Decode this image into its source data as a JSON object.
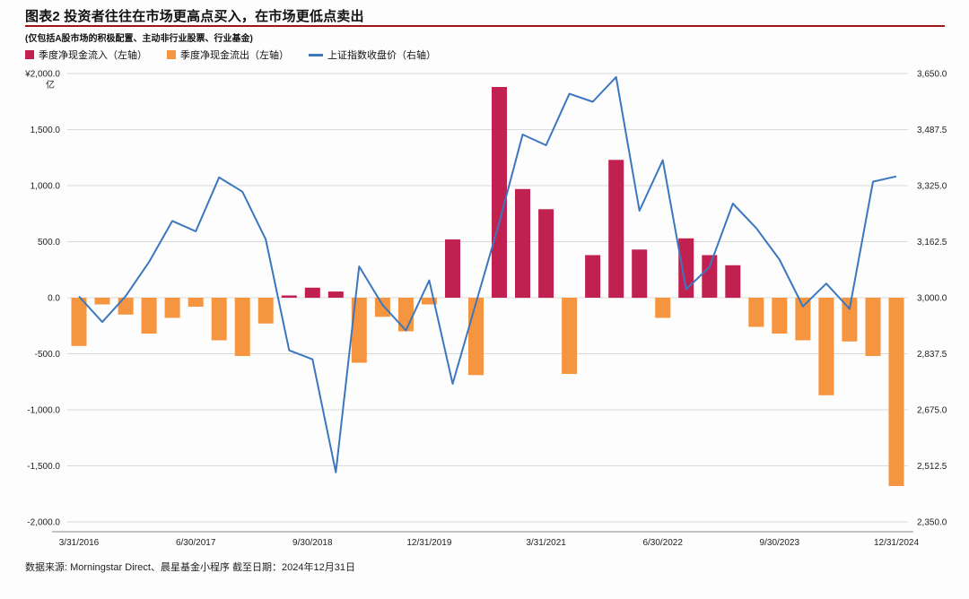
{
  "header": {
    "title": "图表2 投资者往往在市场更高点买入，在市场更低点卖出",
    "subtitle": "(仅包括A股市场的积极配置、主动非行业股票、行业基金)",
    "rule_color": "#9e1515"
  },
  "legend": [
    {
      "label": "季度净现金流入（左轴）",
      "color": "#c02150",
      "swatch": "square"
    },
    {
      "label": "季度净现金流出（左轴）",
      "color": "#f5953f",
      "swatch": "square"
    },
    {
      "label": "上证指数收盘价（右轴）",
      "color": "#3b77bf",
      "swatch": "line"
    }
  ],
  "footer": {
    "text": "数据来源: Morningstar Direct、晨星基金小程序 截至日期：2024年12月31日"
  },
  "chart_data": {
    "type": "bar+line",
    "title": "图表2 投资者往往在市场更高点买入，在市场更低点卖出",
    "x": [
      "3/31/2016",
      "6/30/2016",
      "9/30/2016",
      "12/31/2016",
      "3/31/2017",
      "6/30/2017",
      "9/30/2017",
      "12/31/2017",
      "3/31/2018",
      "6/30/2018",
      "9/30/2018",
      "12/31/2018",
      "3/31/2019",
      "6/30/2019",
      "9/30/2019",
      "12/31/2019",
      "3/31/2020",
      "6/30/2020",
      "9/30/2020",
      "12/31/2020",
      "3/31/2021",
      "6/30/2021",
      "9/30/2021",
      "12/31/2021",
      "3/31/2022",
      "6/30/2022",
      "9/30/2022",
      "12/31/2022",
      "3/31/2023",
      "6/30/2023",
      "9/30/2023",
      "12/31/2023",
      "3/31/2024",
      "6/30/2024",
      "9/30/2024",
      "12/31/2024"
    ],
    "x_tick_indices": [
      0,
      5,
      10,
      15,
      20,
      25,
      30,
      35
    ],
    "series": [
      {
        "name": "季度净现金流（左轴，正=流入，负=流出）",
        "type": "bar",
        "axis": "left",
        "unit": "亿元",
        "values": [
          -430,
          -60,
          -150,
          -320,
          -180,
          -80,
          -380,
          -520,
          -230,
          20,
          90,
          55,
          -580,
          -170,
          -300,
          -60,
          520,
          -690,
          1880,
          970,
          790,
          -680,
          380,
          1230,
          430,
          -180,
          530,
          380,
          290,
          -260,
          -320,
          -380,
          -870,
          -390,
          -520,
          -1680
        ]
      },
      {
        "name": "上证指数收盘价（右轴）",
        "type": "line",
        "axis": "right",
        "values": [
          3003.9,
          2929.6,
          3004.7,
          3103.6,
          3222.5,
          3192.4,
          3348.9,
          3307.2,
          3168.9,
          2847.4,
          2821.4,
          2493.9,
          3090.8,
          2978.9,
          2905.2,
          3050.1,
          2750.3,
          2984.7,
          3218.1,
          3473.1,
          3441.9,
          3591.2,
          3568.2,
          3639.8,
          3252.2,
          3398.6,
          3024.4,
          3089.3,
          3272.9,
          3202.1,
          3110.5,
          2974.9,
          3041.2,
          2967.4,
          3336.5,
          3351.8
        ]
      }
    ],
    "left_axis": {
      "unit": "亿",
      "min": -2000,
      "max": 2000,
      "tick_values": [
        2000,
        1500,
        1000,
        500,
        0,
        -500,
        -1000,
        -1500,
        -2000
      ],
      "tick_labels": [
        "¥2,000.0",
        "1,500.0",
        "1,000.0",
        "500.0",
        "0.0",
        "-500.0",
        "-1,000.0",
        "-1,500.0",
        "-2,000.0"
      ]
    },
    "right_axis": {
      "min": 2350,
      "max": 3650,
      "tick_values": [
        3650,
        3487.5,
        3325,
        3162.5,
        3000,
        2837.5,
        2675,
        2512.5,
        2350
      ],
      "tick_labels": [
        "3,650.0",
        "3,487.5",
        "3,325.0",
        "3,162.5",
        "3,000.0",
        "2,837.5",
        "2,675.0",
        "2,512.5",
        "2,350.0"
      ]
    },
    "colors": {
      "inflow": "#c02150",
      "outflow": "#f5953f",
      "line": "#3b77bf",
      "grid": "#d9d9d9",
      "axis": "#8c8c8c"
    },
    "grid": true,
    "legend_position": "top-left"
  }
}
